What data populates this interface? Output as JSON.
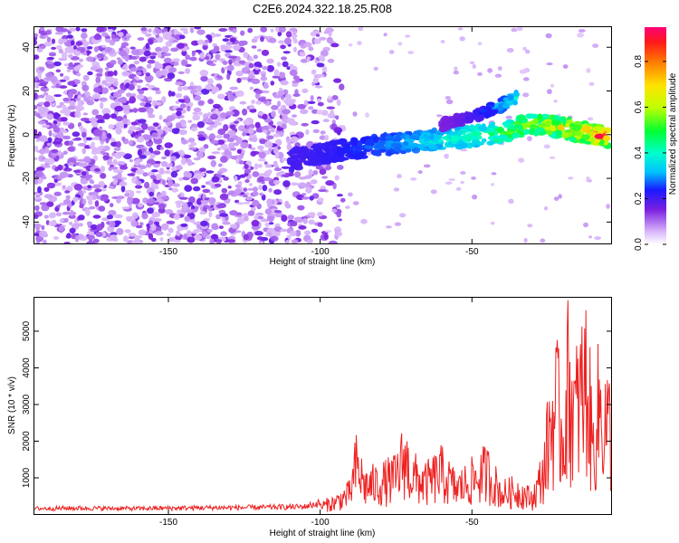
{
  "title": "C2E6.2024.322.18.25.R08",
  "colors": {
    "snr_line": "#ee2222",
    "speckle": "#7a1fe0",
    "background": "#ffffff"
  },
  "chart_data": [
    {
      "type": "heatmap",
      "title": "C2E6.2024.322.18.25.R08",
      "xlabel": "Height of straight line (km)",
      "ylabel": "Frequency (Hz)",
      "xlim": [
        -194,
        -4
      ],
      "ylim": [
        -50,
        49
      ],
      "xticks": [
        -150,
        -100,
        -50
      ],
      "xtick_labels": [
        "-150",
        "-100",
        "-50"
      ],
      "yticks": [
        -40,
        -20,
        0,
        20,
        40
      ],
      "ytick_labels": [
        "-40",
        "-20",
        "0",
        "20",
        "40"
      ],
      "colorbar": {
        "label": "Normalized spectral amplitude",
        "range": [
          0,
          0.95
        ],
        "ticks": [
          0,
          0.2,
          0.4,
          0.6,
          0.8
        ],
        "tick_labels": [
          "0.0",
          "0.2",
          "0.4",
          "0.6",
          "0.8"
        ],
        "colormap": "rainbow (white - violet - blue - cyan - green - yellow - orange - red - magenta)"
      },
      "features": [
        {
          "name": "noise speckle",
          "x_range": [
            -194,
            -100
          ],
          "freq_range": [
            -50,
            49
          ],
          "amplitude_range": [
            0.05,
            0.2
          ]
        },
        {
          "name": "main echo trace",
          "points": [
            [
              -110,
              -12
            ],
            [
              -95,
              -8
            ],
            [
              -80,
              -5
            ],
            [
              -65,
              -3
            ],
            [
              -50,
              -1
            ],
            [
              -40,
              1
            ],
            [
              -30,
              5
            ],
            [
              -20,
              3
            ],
            [
              -10,
              0
            ],
            [
              -5,
              -1
            ]
          ],
          "amplitude_range": [
            0.2,
            0.9
          ]
        },
        {
          "name": "upper echo branch",
          "points": [
            [
              -60,
              4
            ],
            [
              -50,
              8
            ],
            [
              -42,
              12
            ],
            [
              -35,
              17
            ]
          ],
          "amplitude_range": [
            0.15,
            0.45
          ]
        }
      ],
      "peak": {
        "x": -8,
        "freq": -1,
        "amplitude": 0.92
      }
    },
    {
      "type": "line",
      "xlabel": "Height of straight line (km)",
      "ylabel": "SNR (10 * v/v)",
      "xlim": [
        -194,
        -4
      ],
      "ylim": [
        0,
        5900
      ],
      "xticks": [
        -150,
        -100,
        -50
      ],
      "xtick_labels": [
        "-150",
        "-100",
        "-50"
      ],
      "yticks": [
        1000,
        2000,
        3000,
        4000,
        5000
      ],
      "ytick_labels": [
        "1000",
        "2000",
        "3000",
        "4000",
        "5000"
      ],
      "series": [
        {
          "x": [
            -194,
            -180,
            -160,
            -140,
            -120,
            -105,
            -100,
            -95,
            -90,
            -88,
            -85,
            -80,
            -75,
            -72,
            -70,
            -65,
            -60,
            -55,
            -50,
            -45,
            -40,
            -35,
            -30,
            -28,
            -26,
            -24,
            -22,
            -20,
            -18,
            -16,
            -14,
            -12,
            -10,
            -8,
            -6,
            -4
          ],
          "values": [
            150,
            160,
            150,
            170,
            180,
            200,
            300,
            450,
            800,
            1900,
            1100,
            1200,
            1400,
            2250,
            1500,
            1200,
            1600,
            1000,
            1300,
            1650,
            800,
            900,
            600,
            1100,
            1800,
            3500,
            4200,
            3000,
            5200,
            3800,
            4600,
            5200,
            2500,
            4200,
            3700,
            3200
          ]
        }
      ]
    }
  ]
}
